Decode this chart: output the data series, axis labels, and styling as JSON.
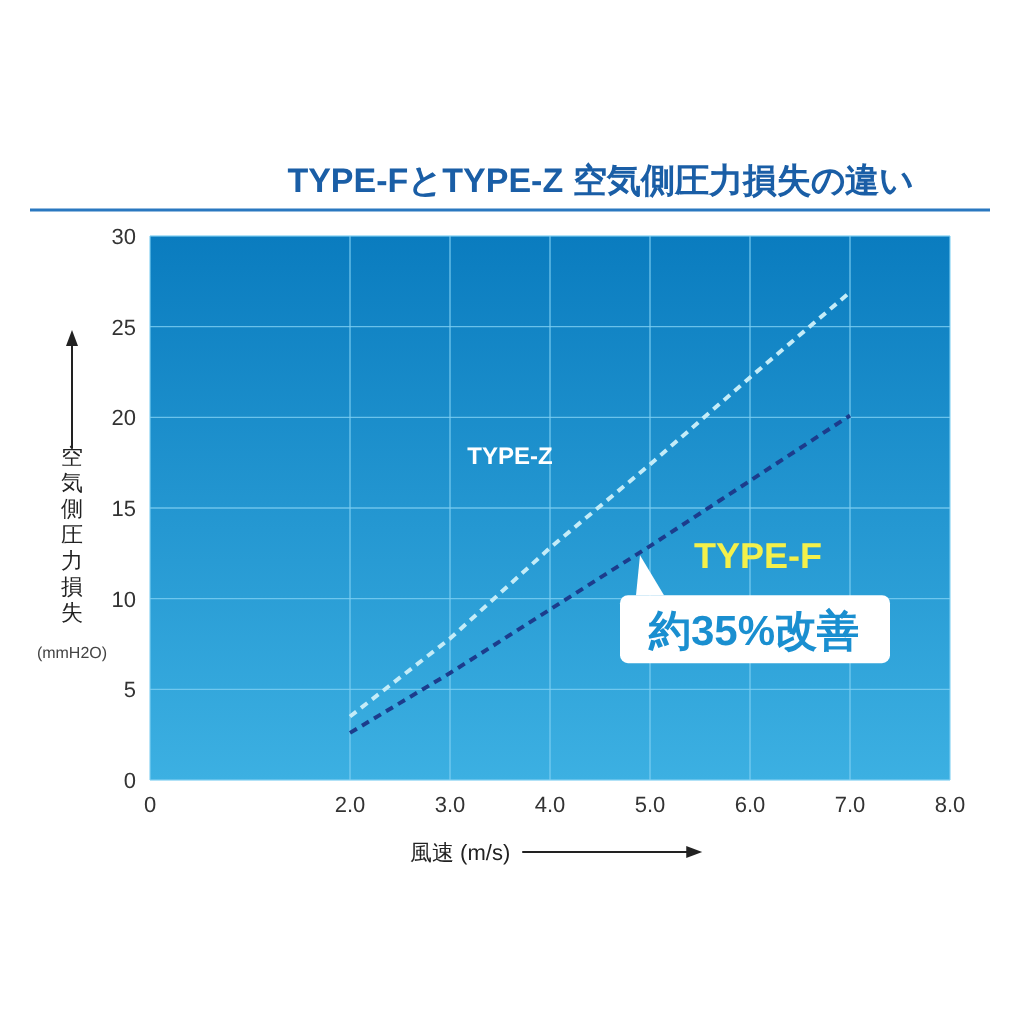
{
  "chart_data": {
    "type": "line",
    "title": "TYPE-FとTYPE-Z 空気側圧力損失の違い",
    "xlabel": "風速 (m/s)",
    "ylabel": "空気側圧力損失 (mmH2O)",
    "xlim": [
      0,
      8
    ],
    "xticks": [
      0,
      {
        "value": 2,
        "label": "2.0"
      },
      {
        "value": 3,
        "label": "3.0"
      },
      {
        "value": 4,
        "label": "4.0"
      },
      {
        "value": 5,
        "label": "5.0"
      },
      {
        "value": 6,
        "label": "6.0"
      },
      {
        "value": 7,
        "label": "7.0"
      },
      {
        "value": 8,
        "label": "8.0"
      }
    ],
    "ylim": [
      0,
      30
    ],
    "yticks": [
      0,
      5,
      10,
      15,
      20,
      25,
      30
    ],
    "grid": true,
    "line_style": "dashed",
    "series": [
      {
        "name": "TYPE-Z",
        "color": "#c4ecf8",
        "x": [
          2,
          3,
          4,
          5,
          6,
          7
        ],
        "values": [
          3.5,
          7.8,
          12.8,
          17.4,
          22.2,
          26.9
        ]
      },
      {
        "name": "TYPE-F",
        "color": "#1c3c8c",
        "x": [
          2,
          3,
          4,
          5,
          6,
          7
        ],
        "values": [
          2.6,
          5.9,
          9.4,
          12.9,
          16.5,
          20.1
        ]
      }
    ],
    "annotations": [
      {
        "text": "約35%改善",
        "x": 4.9,
        "y": 12.4
      }
    ]
  }
}
